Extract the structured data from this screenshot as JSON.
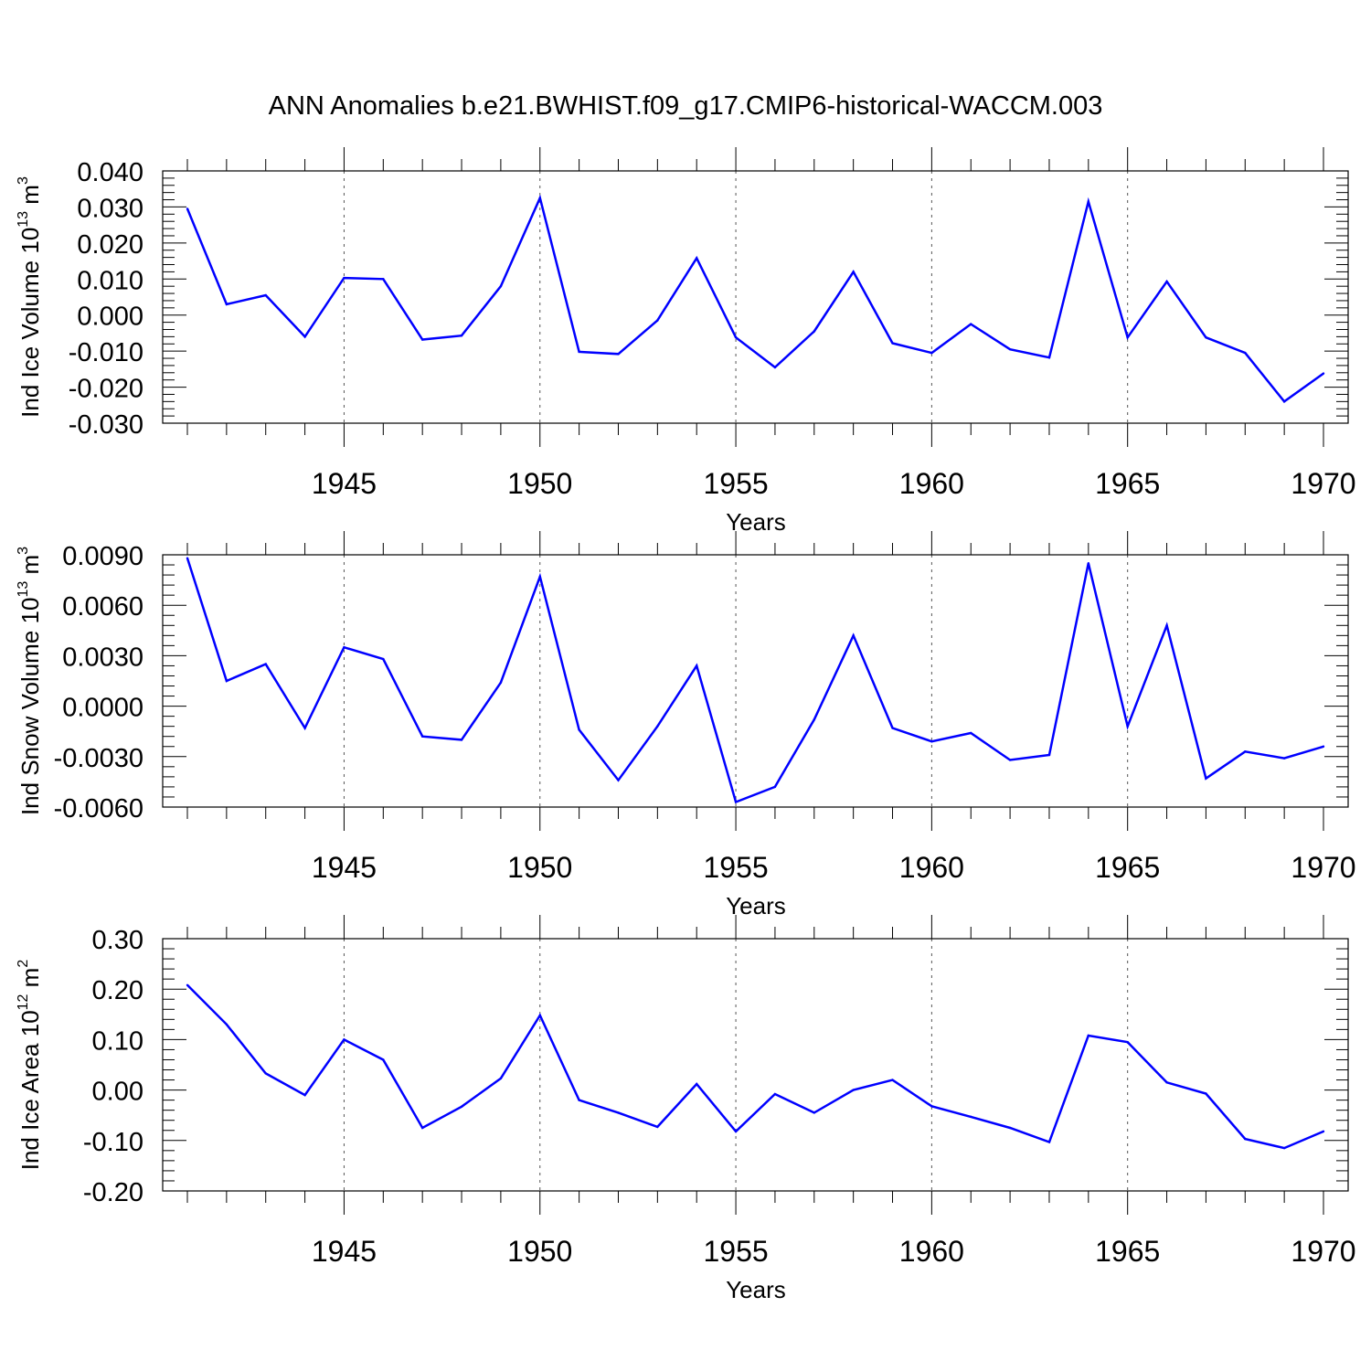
{
  "title": "ANN Anomalies b.e21.BWHIST.f09_g17.CMIP6-historical-WACCM.003",
  "colors": {
    "line": "#0000ff",
    "axis": "#000000",
    "grid": "#555555"
  },
  "chart_data": [
    {
      "type": "line",
      "ylabel": {
        "base": "Ind Ice Volume 10",
        "exp": "13",
        "unit": " m",
        "unit_exp": "3"
      },
      "xlabel": "Years",
      "xlim": [
        1941,
        1970
      ],
      "ylim": [
        -0.03,
        0.04
      ],
      "x_ticks": [
        "1945",
        "1950",
        "1955",
        "1960",
        "1965",
        "1970"
      ],
      "y_ticks": [
        "0.040",
        "0.030",
        "0.020",
        "0.010",
        "0.000",
        "-0.010",
        "-0.020",
        "-0.030"
      ],
      "grid": "dashed vertical at major x ticks",
      "x": [
        1941,
        1942,
        1943,
        1944,
        1945,
        1946,
        1947,
        1948,
        1949,
        1950,
        1951,
        1952,
        1953,
        1954,
        1955,
        1956,
        1957,
        1958,
        1959,
        1960,
        1961,
        1962,
        1963,
        1964,
        1965,
        1966,
        1967,
        1968,
        1969,
        1970
      ],
      "values": [
        0.0295,
        0.003,
        0.0055,
        -0.006,
        0.0103,
        0.01,
        -0.0068,
        -0.0057,
        0.008,
        0.0325,
        -0.0102,
        -0.0108,
        -0.0015,
        0.0158,
        -0.0062,
        -0.0145,
        -0.0045,
        0.012,
        -0.0078,
        -0.0105,
        -0.0025,
        -0.0095,
        -0.0118,
        0.0315,
        -0.0062,
        0.0093,
        -0.0062,
        -0.0105,
        -0.024,
        -0.0162
      ]
    },
    {
      "type": "line",
      "ylabel": {
        "base": "Ind Snow Volume 10",
        "exp": "13",
        "unit": " m",
        "unit_exp": "3"
      },
      "xlabel": "Years",
      "xlim": [
        1941,
        1970
      ],
      "ylim": [
        -0.006,
        0.009
      ],
      "x_ticks": [
        "1945",
        "1950",
        "1955",
        "1960",
        "1965",
        "1970"
      ],
      "y_ticks": [
        "0.0090",
        "0.0060",
        "0.0030",
        "0.0000",
        "-0.0030",
        "-0.0060"
      ],
      "grid": "dashed vertical at major x ticks",
      "x": [
        1941,
        1942,
        1943,
        1944,
        1945,
        1946,
        1947,
        1948,
        1949,
        1950,
        1951,
        1952,
        1953,
        1954,
        1955,
        1956,
        1957,
        1958,
        1959,
        1960,
        1961,
        1962,
        1963,
        1964,
        1965,
        1966,
        1967,
        1968,
        1969,
        1970
      ],
      "values": [
        0.0088,
        0.0015,
        0.0025,
        -0.0013,
        0.0035,
        0.0028,
        -0.0018,
        -0.002,
        0.0014,
        0.0077,
        -0.0014,
        -0.0044,
        -0.0012,
        0.0024,
        -0.0057,
        -0.0048,
        -0.0008,
        0.0042,
        -0.0013,
        -0.0021,
        -0.0016,
        -0.0032,
        -0.0029,
        0.0085,
        -0.0012,
        0.0048,
        -0.0043,
        -0.0027,
        -0.0031,
        -0.0024
      ]
    },
    {
      "type": "line",
      "ylabel": {
        "base": "Ind Ice Area 10",
        "exp": "12",
        "unit": " m",
        "unit_exp": "2"
      },
      "xlabel": "Years",
      "xlim": [
        1941,
        1970
      ],
      "ylim": [
        -0.2,
        0.3
      ],
      "x_ticks": [
        "1945",
        "1950",
        "1955",
        "1960",
        "1965",
        "1970"
      ],
      "y_ticks": [
        "0.30",
        "0.20",
        "0.10",
        "0.00",
        "-0.10",
        "-0.20"
      ],
      "grid": "dashed vertical at major x ticks",
      "x": [
        1941,
        1942,
        1943,
        1944,
        1945,
        1946,
        1947,
        1948,
        1949,
        1950,
        1951,
        1952,
        1953,
        1954,
        1955,
        1956,
        1957,
        1958,
        1959,
        1960,
        1961,
        1962,
        1963,
        1964,
        1965,
        1966,
        1967,
        1968,
        1969,
        1970
      ],
      "values": [
        0.208,
        0.13,
        0.033,
        -0.01,
        0.1,
        0.06,
        -0.075,
        -0.033,
        0.023,
        0.148,
        -0.02,
        -0.045,
        -0.073,
        0.012,
        -0.082,
        -0.008,
        -0.045,
        0.0,
        0.02,
        -0.032,
        -0.053,
        -0.075,
        -0.103,
        0.108,
        0.095,
        0.015,
        -0.007,
        -0.097,
        -0.115,
        -0.082
      ]
    }
  ]
}
